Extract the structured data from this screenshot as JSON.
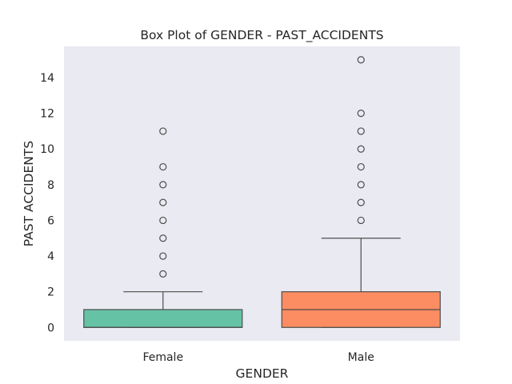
{
  "chart_data": {
    "type": "box",
    "title": "Box Plot of GENDER - PAST_ACCIDENTS",
    "xlabel": "GENDER",
    "ylabel": "PAST ACCIDENTS",
    "ylim": [
      -0.75,
      15.75
    ],
    "yticks": [
      0,
      2,
      4,
      6,
      8,
      10,
      12,
      14
    ],
    "grid": false,
    "background": "#eaeaf2",
    "categories": [
      "Female",
      "Male"
    ],
    "boxes": [
      {
        "category": "Female",
        "color": "#66c2a5",
        "whisker_low": 0,
        "q1": 0,
        "median": 0,
        "q3": 1,
        "whisker_high": 2,
        "outliers": [
          3,
          4,
          5,
          6,
          7,
          8,
          9,
          11
        ]
      },
      {
        "category": "Male",
        "color": "#fc8d62",
        "whisker_low": 0,
        "q1": 0,
        "median": 1,
        "q3": 2,
        "whisker_high": 5,
        "outliers": [
          6,
          7,
          8,
          9,
          10,
          11,
          12,
          15
        ]
      }
    ]
  }
}
